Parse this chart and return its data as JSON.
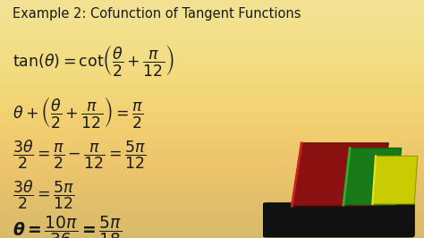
{
  "bg_color": "#f0dc82",
  "text_color": "#1a1a1a",
  "bold_color": "#1a1a1a",
  "figsize": [
    4.74,
    2.66
  ],
  "dpi": 100,
  "title_fontsize": 10.5,
  "math_fontsize": 12.5,
  "bold_math_fontsize": 13.5,
  "book_colors": [
    "#111111",
    "#b22222",
    "#228B22",
    "#cccc00"
  ],
  "bg_gradient_top": "#e8d070",
  "bg_gradient_bot": "#f5e898"
}
